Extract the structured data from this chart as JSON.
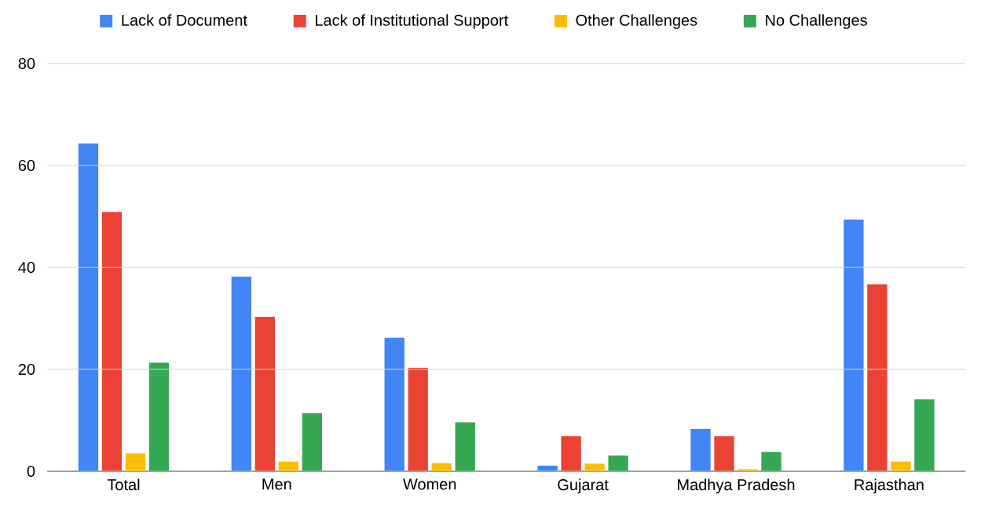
{
  "chart_data": {
    "type": "bar",
    "categories": [
      "Total",
      "Men",
      "Women",
      "Gujarat",
      "Madhya Pradesh",
      "Rajasthan"
    ],
    "series": [
      {
        "name": "Lack of Document",
        "color": "#4285f4",
        "values": [
          64.3,
          38.2,
          26.2,
          1.1,
          8.3,
          49.4
        ]
      },
      {
        "name": "Lack of Institutional Support",
        "color": "#ea4335",
        "values": [
          50.9,
          30.3,
          20.3,
          6.9,
          6.9,
          36.7
        ]
      },
      {
        "name": "Other Challenges",
        "color": "#fbbc04",
        "values": [
          3.5,
          1.9,
          1.6,
          1.5,
          0.4,
          1.9
        ]
      },
      {
        "name": "No Challenges",
        "color": "#34a853",
        "values": [
          21.3,
          11.4,
          9.6,
          3.1,
          3.8,
          14.1
        ]
      }
    ],
    "ylim": [
      0,
      80
    ],
    "yticks": [
      0,
      20,
      40,
      60,
      80
    ],
    "grid": "y",
    "legend": "top"
  }
}
